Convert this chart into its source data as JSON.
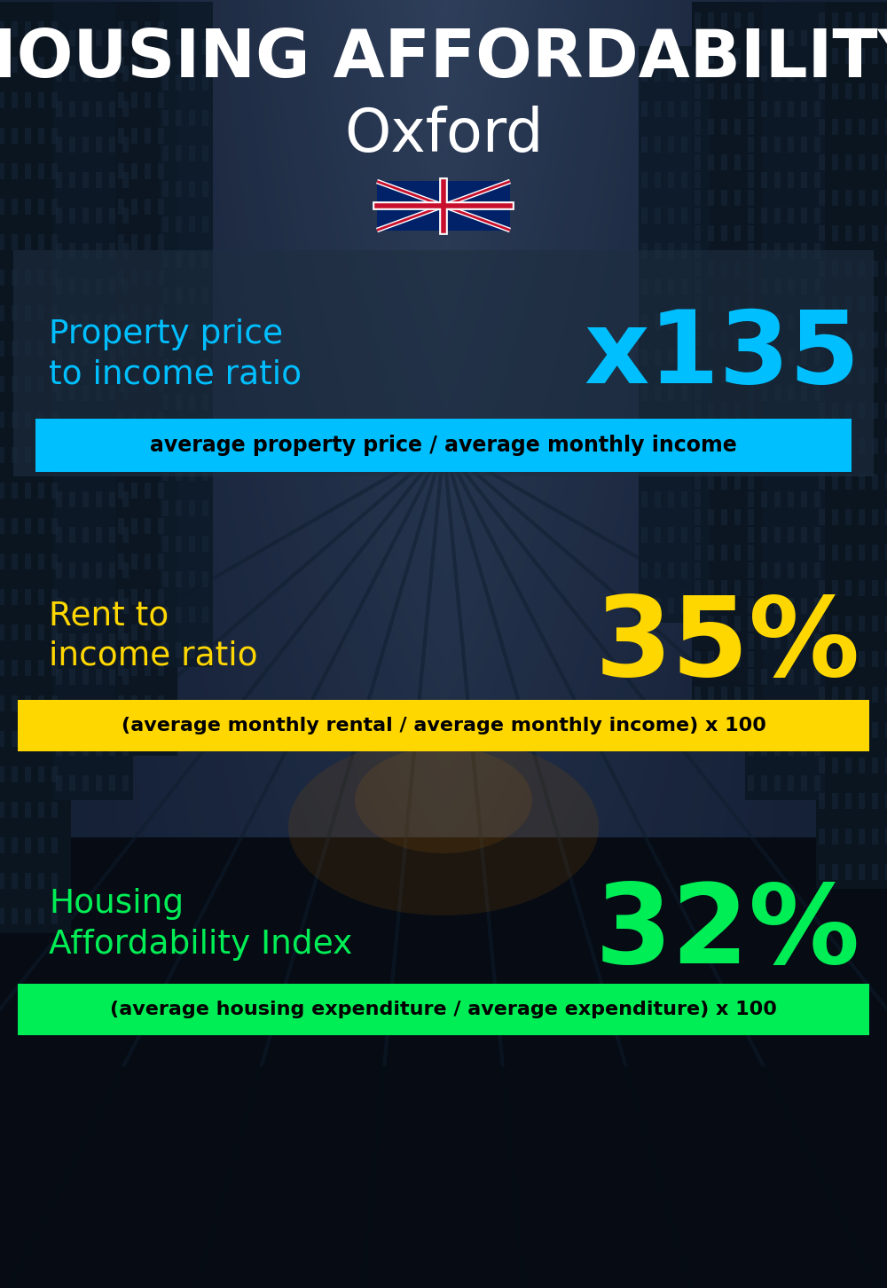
{
  "title_line1": "HOUSING AFFORDABILITY",
  "title_line2": "Oxford",
  "flag_emoji": "🇬🇧",
  "section1_label": "Property price\nto income ratio",
  "section1_value": "x135",
  "section1_label_color": "#00BFFF",
  "section1_value_color": "#00BFFF",
  "section1_banner": "average property price / average monthly income",
  "section1_banner_bg": "#00BFFF",
  "section1_overlay_color": "#1a2a3a",
  "section2_label": "Rent to\nincome ratio",
  "section2_value": "35%",
  "section2_label_color": "#FFD700",
  "section2_value_color": "#FFD700",
  "section2_banner": "(average monthly rental / average monthly income) x 100",
  "section2_banner_bg": "#FFD700",
  "section3_label": "Housing\nAffordability Index",
  "section3_value": "32%",
  "section3_label_color": "#00EE55",
  "section3_value_color": "#00EE55",
  "section3_banner": "(average housing expenditure / average expenditure) x 100",
  "section3_banner_bg": "#00EE55",
  "bg_color": "#080e18",
  "title_color": "#FFFFFF",
  "city_color": "#FFFFFF",
  "banner_text_color": "#000000",
  "fig_width": 10.0,
  "fig_height": 14.52,
  "dpi": 100
}
